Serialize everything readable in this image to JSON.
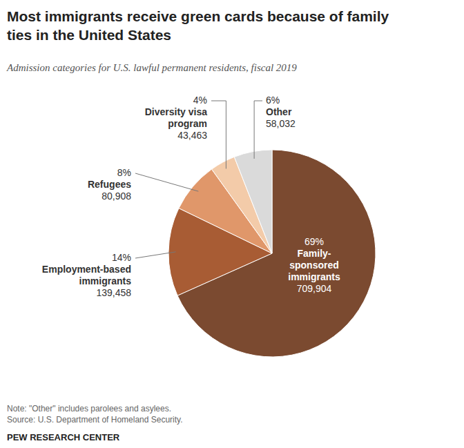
{
  "chart_data": {
    "type": "pie",
    "title": "Most immigrants receive green cards because of family ties in the United States",
    "subtitle": "Admission categories for U.S. lawful permanent residents, fiscal 2019",
    "categories": [
      "Family-sponsored immigrants",
      "Employment-based immigrants",
      "Refugees",
      "Diversity visa program",
      "Other"
    ],
    "values": [
      69,
      14,
      8,
      4,
      6
    ],
    "value_labels": [
      "69%",
      "14%",
      "8%",
      "4%",
      "6%"
    ],
    "counts": [
      709904,
      139458,
      80908,
      43463,
      58032
    ],
    "colors": [
      "#7b4a30",
      "#a85c34",
      "#e0976a",
      "#f3cba9",
      "#dadada"
    ],
    "data_labels": true,
    "note": "Note: \"Other\" includes parolees and asylees.",
    "source": "Source: U.S. Department of Homeland Security.",
    "credit": "PEW RESEARCH CENTER"
  }
}
